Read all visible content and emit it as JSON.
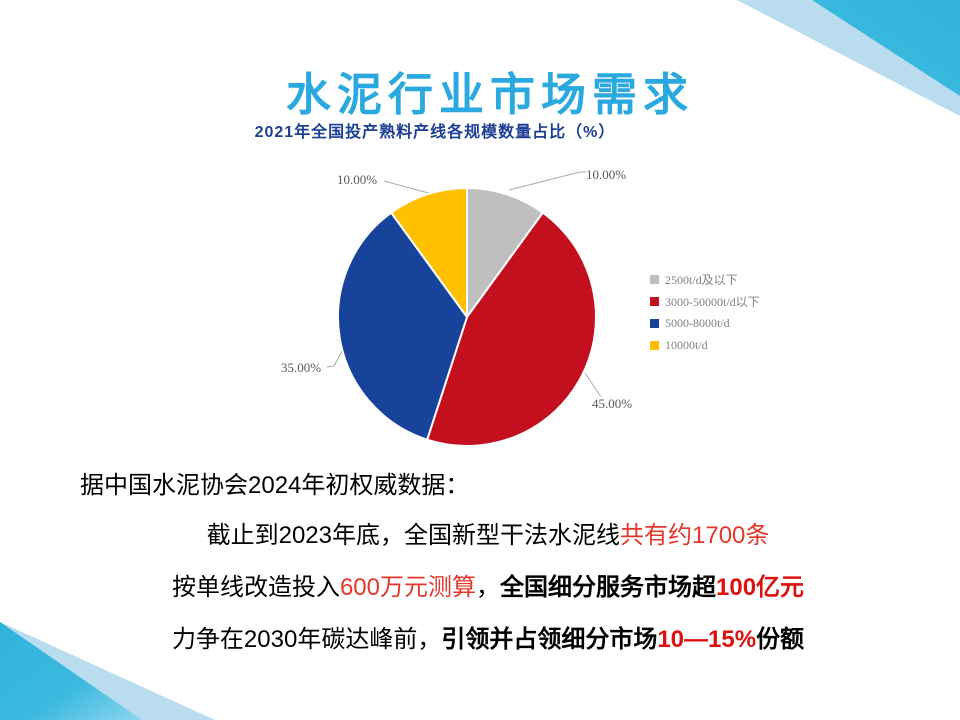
{
  "slide": {
    "title": "水泥行业市场需求"
  },
  "chart_data": {
    "type": "pie",
    "title": "2021年全国投产熟料产线各规模数量占比（%）",
    "labels": [
      "2500t/d及以下",
      "3000-50000t/d以下",
      "5000-8000t/d",
      "10000t/d"
    ],
    "values": [
      10,
      45,
      35,
      10
    ],
    "unit": "%",
    "slice_labels": [
      "10.00%",
      "45.00%",
      "35.00%",
      "10.00%"
    ],
    "colors": [
      "#bfbfbf",
      "#c4101e",
      "#17449a",
      "#ffc000"
    ],
    "start_angle_deg": 0,
    "direction": "clockwise",
    "legend_position": "right",
    "label_color": "#595959",
    "leader_line_color": "#ababab"
  },
  "body": {
    "line1": "据中国水泥协会2024年初权威数据：",
    "line2_runs": [
      {
        "text": "截止到2023年底，全国新型干法水泥线",
        "style": "black"
      },
      {
        "text": "共有约1700条",
        "style": "red"
      }
    ],
    "line3_runs": [
      {
        "text": "按单线改造投入",
        "style": "black"
      },
      {
        "text": "600万元测算",
        "style": "red"
      },
      {
        "text": "，",
        "style": "black"
      },
      {
        "text": "全国细分服务市场超",
        "style": "black-bold"
      },
      {
        "text": "100亿元",
        "style": "red-bold"
      }
    ],
    "line4_runs": [
      {
        "text": "力争在2030年碳达峰前，",
        "style": "black"
      },
      {
        "text": "引领并占领细分市场",
        "style": "black-bold"
      },
      {
        "text": "10—15%",
        "style": "red-bold"
      },
      {
        "text": "份额",
        "style": "black-bold"
      }
    ]
  },
  "colors": {
    "title_cyan": "#29a9df",
    "chart_title_blue": "#1d3f94",
    "red_regular": "#e5362a",
    "red_bold": "#dd1010",
    "decor_cyan": "#2fb3dc",
    "decor_pale": "#b9ddef"
  }
}
